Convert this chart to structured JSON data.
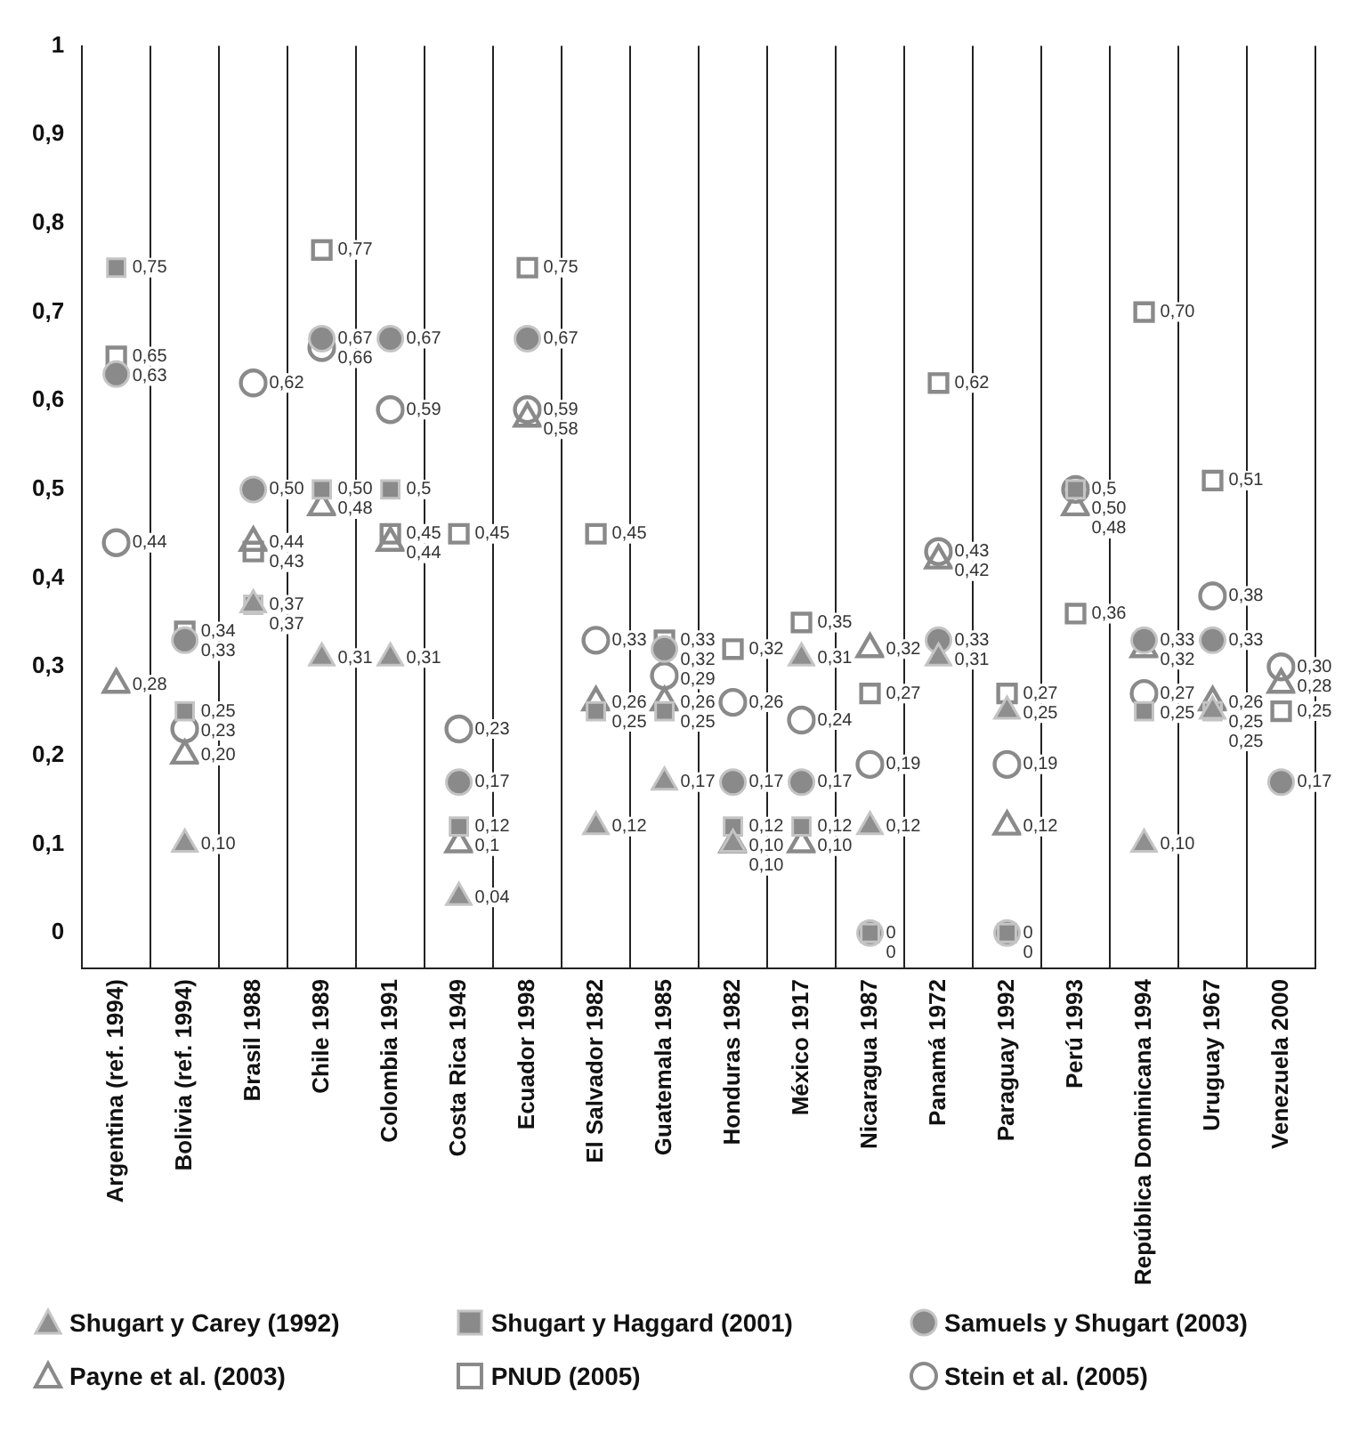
{
  "chart_data": {
    "type": "scatter",
    "categories": [
      "Argentina (ref. 1994)",
      "Bolivia (ref. 1994)",
      "Brasil 1988",
      "Chile 1989",
      "Colombia 1991",
      "Costa Rica 1949",
      "Ecuador 1998",
      "El Salvador 1982",
      "Guatemala 1985",
      "Honduras 1982",
      "México 1917",
      "Nicaragua 1987",
      "Panamá 1972",
      "Paraguay 1992",
      "Perú 1993",
      "República Dominicana 1994",
      "Uruguay 1967",
      "Venezuela 2000"
    ],
    "ylim": [
      -0.04,
      1
    ],
    "yticks": [
      0,
      {
        "value": 0.1,
        "label": "0,1"
      },
      {
        "value": 0.2,
        "label": "0,2"
      },
      {
        "value": 0.3,
        "label": "0,3"
      },
      {
        "value": 0.4,
        "label": "0,4"
      },
      {
        "value": 0.5,
        "label": "0,5"
      },
      {
        "value": 0.6,
        "label": "0,6"
      },
      {
        "value": 0.7,
        "label": "0,7"
      },
      {
        "value": 0.8,
        "label": "0,8"
      },
      {
        "value": 0.9,
        "label": "0,9"
      },
      1
    ],
    "grid": "x",
    "legend": "bottom",
    "series": [
      {
        "name": "Shugart y Carey (1992)",
        "color": "#8f8f8f",
        "marker": "triangle",
        "values": [
          null,
          0.1,
          0.37,
          0.31,
          0.31,
          0.04,
          null,
          0.12,
          0.17,
          0.1,
          0.31,
          0.12,
          0.31,
          0.25,
          null,
          0.1,
          0.25,
          null
        ],
        "value_labels": [
          null,
          "0,10",
          "0,37",
          "0,31",
          "0,31",
          "0,04",
          null,
          "0,12",
          "0,17",
          "0,10",
          "0,31",
          "0,12",
          "0,31",
          "0,25",
          null,
          "0,10",
          "0,25",
          null
        ]
      },
      {
        "name": "Shugart y Haggard (2001)",
        "color": "#8a8a8a",
        "marker": "square",
        "values": [
          0.75,
          0.25,
          0.37,
          0.5,
          0.5,
          0.12,
          null,
          0.25,
          0.25,
          0.12,
          0.12,
          0,
          null,
          0,
          0.5,
          0.25,
          0.25,
          null
        ],
        "value_labels": [
          "0,75",
          "0,25",
          "0,37",
          "0,50",
          "0,5",
          "0,12",
          null,
          "0,25",
          "0,25",
          "0,12",
          "0,12",
          "0",
          null,
          "0",
          "0,5",
          "0,25",
          "0,25",
          null
        ]
      },
      {
        "name": "Samuels y Shugart (2003)",
        "color": "#8a8a8a",
        "marker": "circle",
        "values": [
          0.63,
          0.33,
          0.5,
          0.67,
          0.67,
          0.17,
          0.67,
          null,
          0.32,
          0.17,
          0.17,
          0,
          0.33,
          0,
          null,
          0.33,
          0.33,
          0.17
        ],
        "value_labels": [
          "0,63",
          "0,33",
          "0,50",
          "0,67",
          "0,67",
          "0,17",
          "0,67",
          null,
          "0,32",
          "0,17",
          "0,17",
          "0",
          "0,33",
          "0",
          null,
          "0,33",
          "0,33",
          "0,17"
        ]
      },
      {
        "name": "Payne et al. (2003)",
        "color": "#8a8a8a",
        "marker": "triangle",
        "values": [
          0.28,
          0.2,
          0.44,
          0.48,
          0.44,
          0.1,
          0.58,
          0.26,
          0.26,
          0.1,
          0.1,
          0.32,
          0.42,
          0.12,
          0.48,
          0.32,
          0.26,
          0.28
        ],
        "value_labels": [
          "0,28",
          "0,20",
          "0,44",
          "0,48",
          "0,44",
          "0,1",
          "0,58",
          "0,26",
          "0,26",
          "0,10",
          "0,10",
          "0,32",
          "0,42",
          "0,12",
          "0,48",
          "0,32",
          "0,26",
          "0,28"
        ]
      },
      {
        "name": "PNUD (2005)",
        "color": "#8a8a8a",
        "marker": "square",
        "values": [
          0.65,
          0.34,
          0.43,
          0.77,
          0.45,
          0.45,
          0.75,
          0.45,
          0.33,
          0.32,
          0.35,
          0.27,
          0.62,
          0.27,
          0.36,
          0.7,
          0.51,
          0.25
        ],
        "value_labels": [
          "0,65",
          "0,34",
          "0,43",
          "0,77",
          "0,45",
          "0,45",
          "0,75",
          "0,45",
          "0,33",
          "0,32",
          "0,35",
          "0,27",
          "0,62",
          "0,27",
          "0,36",
          "0,70",
          "0,51",
          "0,25"
        ]
      },
      {
        "name": "Stein et al. (2005)",
        "color": "#8a8a8a",
        "marker": "circle",
        "values": [
          0.44,
          0.23,
          0.62,
          0.66,
          0.59,
          0.23,
          0.59,
          0.33,
          0.29,
          0.26,
          0.24,
          0.19,
          0.43,
          0.19,
          0.5,
          0.27,
          0.38,
          0.3
        ],
        "value_labels": [
          "0,44",
          "0,23",
          "0,62",
          "0,66",
          "0,59",
          "0,23",
          "0,59",
          "0,33",
          "0,29",
          "0,26",
          "0,24",
          "0,19",
          "0,43",
          "0,19",
          "0,50",
          "0,27",
          "0,38",
          "0,30"
        ]
      }
    ]
  }
}
